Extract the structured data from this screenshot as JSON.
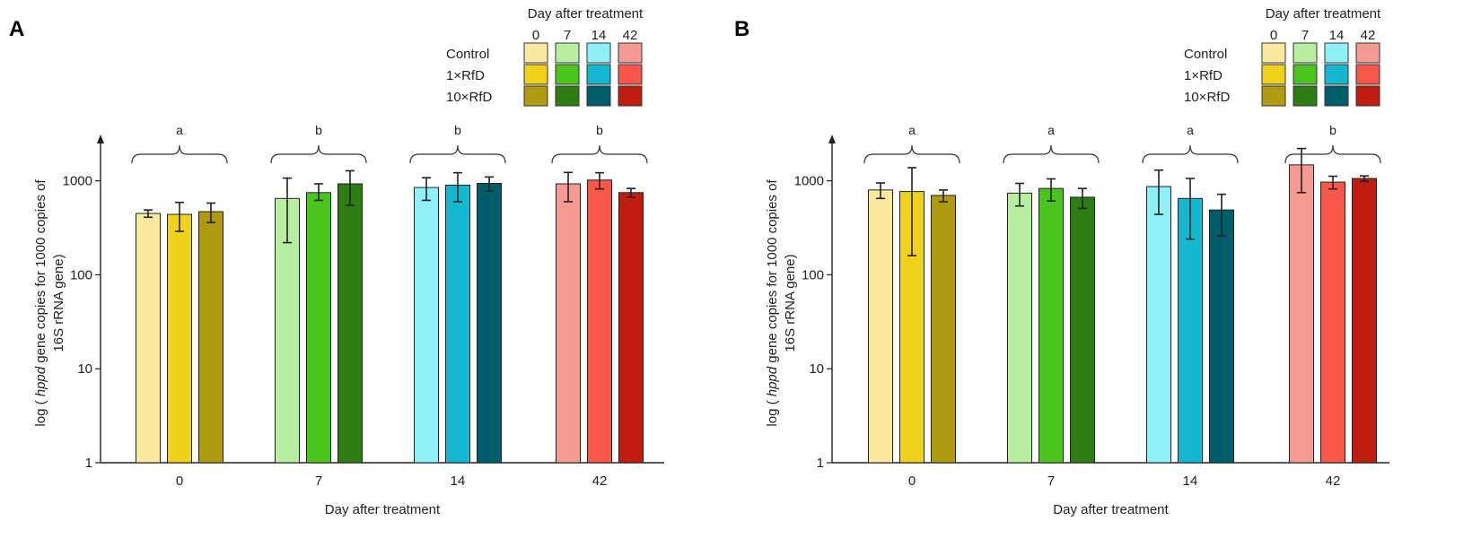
{
  "chart_data": [
    {
      "panel": "A",
      "type": "bar",
      "yscale": "log",
      "ylim": [
        1,
        2500
      ],
      "yticks": [
        "1",
        "10",
        "100",
        "1000"
      ],
      "ylabel_parts": [
        "log ( ",
        "hppd",
        " gene copies for 1000 copies of",
        "16S rRNA gene)"
      ],
      "xlabel": "Day after treatment",
      "categories": [
        "0",
        "7",
        "14",
        "42"
      ],
      "series": [
        {
          "name": "Control",
          "values": [
            450,
            650,
            850,
            930
          ],
          "err_low": [
            40,
            430,
            230,
            330
          ],
          "err_high": [
            40,
            420,
            230,
            300
          ]
        },
        {
          "name": "1×RfD",
          "values": [
            440,
            750,
            900,
            1020
          ],
          "err_low": [
            150,
            130,
            300,
            200
          ],
          "err_high": [
            150,
            180,
            320,
            200
          ]
        },
        {
          "name": "10×RfD",
          "values": [
            470,
            930,
            940,
            750
          ],
          "err_low": [
            110,
            380,
            160,
            80
          ],
          "err_high": [
            110,
            350,
            160,
            80
          ]
        }
      ],
      "significance": [
        "a",
        "b",
        "b",
        "b"
      ]
    },
    {
      "panel": "B",
      "type": "bar",
      "yscale": "log",
      "ylim": [
        1,
        2500
      ],
      "yticks": [
        "1",
        "10",
        "100",
        "1000"
      ],
      "ylabel_parts": [
        "log ( ",
        "hppd",
        " gene copies for 1000 copies of",
        "16S rRNA gene)"
      ],
      "xlabel": "Day after treatment",
      "categories": [
        "0",
        "7",
        "14",
        "42"
      ],
      "series": [
        {
          "name": "Control",
          "values": [
            800,
            740,
            870,
            1480
          ],
          "err_low": [
            150,
            200,
            430,
            730
          ],
          "err_high": [
            150,
            200,
            430,
            730
          ]
        },
        {
          "name": "1×RfD",
          "values": [
            770,
            830,
            650,
            970
          ],
          "err_low": [
            610,
            220,
            410,
            150
          ],
          "err_high": [
            610,
            220,
            410,
            150
          ]
        },
        {
          "name": "10×RfD",
          "values": [
            700,
            670,
            490,
            1060
          ],
          "err_low": [
            100,
            160,
            230,
            70
          ],
          "err_high": [
            100,
            160,
            230,
            70
          ]
        }
      ],
      "significance": [
        "a",
        "a",
        "a",
        "b"
      ]
    }
  ],
  "legend": {
    "title": "Day after treatment",
    "days": [
      "0",
      "7",
      "14",
      "42"
    ],
    "rows": [
      "Control",
      "1×RfD",
      "10×RfD"
    ]
  },
  "colors": {
    "0": [
      "#fbe9a0",
      "#f0d21c",
      "#b09a12"
    ],
    "7": [
      "#b8eea0",
      "#4cc41e",
      "#2e7d14"
    ],
    "14": [
      "#90f0f8",
      "#14b8d0",
      "#005e6c"
    ],
    "42": [
      "#f59a92",
      "#f9564a",
      "#c01c10"
    ]
  }
}
